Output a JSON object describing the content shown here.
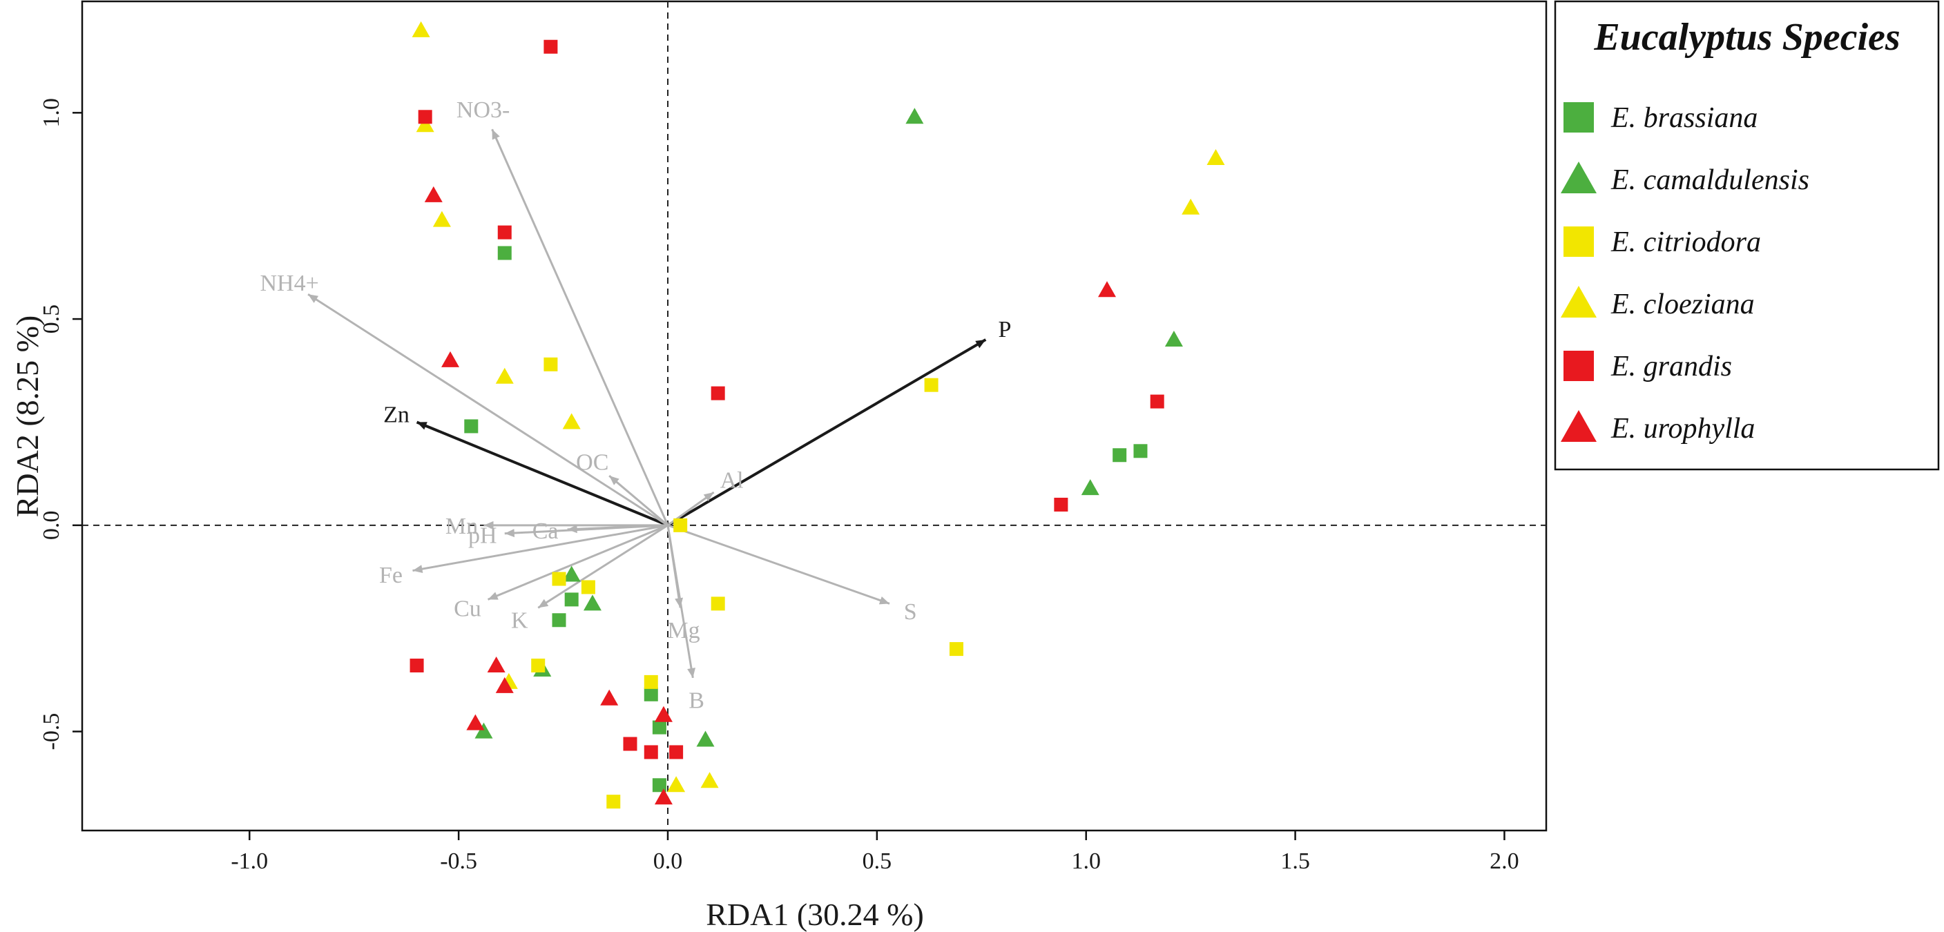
{
  "chart_data": {
    "type": "scatter",
    "title": "",
    "xlabel": "RDA1 (30.24 %)",
    "ylabel": "RDA2 (8.25 %)",
    "xlim": [
      -1.4,
      2.1
    ],
    "ylim": [
      -0.74,
      1.27
    ],
    "xticks": [
      "-1.0",
      "-0.5",
      "0.0",
      "0.5",
      "1.0",
      "1.5",
      "2.0"
    ],
    "yticks": [
      "-0.5",
      "0.0",
      "0.5",
      "1.0"
    ],
    "xtick_values": [
      -1.0,
      -0.5,
      0.0,
      0.5,
      1.0,
      1.5,
      2.0
    ],
    "ytick_values": [
      -0.5,
      0.0,
      0.5,
      1.0
    ],
    "reference_lines": {
      "x": 0.0,
      "y": 0.0
    },
    "colors": {
      "green": "#4caf3f",
      "yellow": "#f2e600",
      "red": "#e8191f",
      "vector_gray": "#b3b3b3",
      "vector_dark": "#1a1a1a"
    },
    "legend": {
      "title": "Eucalyptus Species",
      "position": "right-outside",
      "entries": [
        {
          "label": "E. brassiana",
          "shape": "square",
          "color": "#4caf3f"
        },
        {
          "label": "E. camaldulensis",
          "shape": "triangle",
          "color": "#4caf3f"
        },
        {
          "label": "E. citriodora",
          "shape": "square",
          "color": "#f2e600"
        },
        {
          "label": "E. cloeziana",
          "shape": "triangle",
          "color": "#f2e600"
        },
        {
          "label": "E. grandis",
          "shape": "square",
          "color": "#e8191f"
        },
        {
          "label": "E. urophylla",
          "shape": "triangle",
          "color": "#e8191f"
        }
      ]
    },
    "vectors": [
      {
        "name": "P",
        "x": 0.76,
        "y": 0.45,
        "significant": true
      },
      {
        "name": "Zn",
        "x": -0.6,
        "y": 0.25,
        "significant": true
      },
      {
        "name": "NO3-",
        "x": -0.42,
        "y": 0.96,
        "significant": false
      },
      {
        "name": "NH4+",
        "x": -0.86,
        "y": 0.56,
        "significant": false
      },
      {
        "name": "OC",
        "x": -0.14,
        "y": 0.12,
        "significant": false
      },
      {
        "name": "Al",
        "x": 0.11,
        "y": 0.08,
        "significant": false
      },
      {
        "name": "Mn",
        "x": -0.44,
        "y": 0.0,
        "significant": false
      },
      {
        "name": "Ca",
        "x": -0.24,
        "y": -0.01,
        "significant": false
      },
      {
        "name": "pH",
        "x": -0.39,
        "y": -0.02,
        "significant": false
      },
      {
        "name": "Fe",
        "x": -0.61,
        "y": -0.11,
        "significant": false
      },
      {
        "name": "Cu",
        "x": -0.43,
        "y": -0.18,
        "significant": false
      },
      {
        "name": "K",
        "x": -0.31,
        "y": -0.2,
        "significant": false
      },
      {
        "name": "Mg",
        "x": 0.03,
        "y": -0.2,
        "significant": false
      },
      {
        "name": "B",
        "x": 0.06,
        "y": -0.37,
        "significant": false
      },
      {
        "name": "S",
        "x": 0.53,
        "y": -0.19,
        "significant": false
      }
    ],
    "series": [
      {
        "name": "E. brassiana",
        "shape": "square",
        "color": "#4caf3f",
        "points": [
          [
            -0.39,
            0.66
          ],
          [
            -0.47,
            0.24
          ],
          [
            1.08,
            0.17
          ],
          [
            1.13,
            0.18
          ],
          [
            -0.23,
            -0.18
          ],
          [
            -0.26,
            -0.23
          ],
          [
            -0.04,
            -0.41
          ],
          [
            -0.02,
            -0.49
          ],
          [
            -0.02,
            -0.63
          ]
        ]
      },
      {
        "name": "E. camaldulensis",
        "shape": "triangle",
        "color": "#4caf3f",
        "points": [
          [
            0.59,
            0.99
          ],
          [
            1.21,
            0.45
          ],
          [
            1.01,
            0.09
          ],
          [
            -0.23,
            -0.12
          ],
          [
            -0.18,
            -0.19
          ],
          [
            -0.3,
            -0.35
          ],
          [
            -0.44,
            -0.5
          ],
          [
            0.09,
            -0.52
          ]
        ]
      },
      {
        "name": "E. citriodora",
        "shape": "square",
        "color": "#f2e600",
        "points": [
          [
            -0.28,
            0.39
          ],
          [
            0.63,
            0.34
          ],
          [
            0.03,
            0.0
          ],
          [
            -0.26,
            -0.13
          ],
          [
            -0.19,
            -0.15
          ],
          [
            0.12,
            -0.19
          ],
          [
            0.69,
            -0.3
          ],
          [
            -0.31,
            -0.34
          ],
          [
            -0.04,
            -0.38
          ],
          [
            -0.13,
            -0.67
          ]
        ]
      },
      {
        "name": "E. cloeziana",
        "shape": "triangle",
        "color": "#f2e600",
        "points": [
          [
            -0.59,
            1.2
          ],
          [
            -0.58,
            0.97
          ],
          [
            -0.54,
            0.74
          ],
          [
            1.31,
            0.89
          ],
          [
            1.25,
            0.77
          ],
          [
            -0.39,
            0.36
          ],
          [
            -0.23,
            0.25
          ],
          [
            -0.38,
            -0.38
          ],
          [
            0.02,
            -0.63
          ],
          [
            0.1,
            -0.62
          ]
        ]
      },
      {
        "name": "E. grandis",
        "shape": "square",
        "color": "#e8191f",
        "points": [
          [
            -0.28,
            1.16
          ],
          [
            -0.58,
            0.99
          ],
          [
            -0.39,
            0.71
          ],
          [
            0.12,
            0.32
          ],
          [
            1.17,
            0.3
          ],
          [
            0.94,
            0.05
          ],
          [
            -0.6,
            -0.34
          ],
          [
            -0.09,
            -0.53
          ],
          [
            -0.04,
            -0.55
          ],
          [
            0.02,
            -0.55
          ]
        ]
      },
      {
        "name": "E. urophylla",
        "shape": "triangle",
        "color": "#e8191f",
        "points": [
          [
            -0.56,
            0.8
          ],
          [
            -0.52,
            0.4
          ],
          [
            1.05,
            0.57
          ],
          [
            -0.41,
            -0.34
          ],
          [
            -0.39,
            -0.39
          ],
          [
            -0.46,
            -0.48
          ],
          [
            -0.14,
            -0.42
          ],
          [
            -0.01,
            -0.46
          ],
          [
            -0.01,
            -0.66
          ]
        ]
      }
    ]
  }
}
